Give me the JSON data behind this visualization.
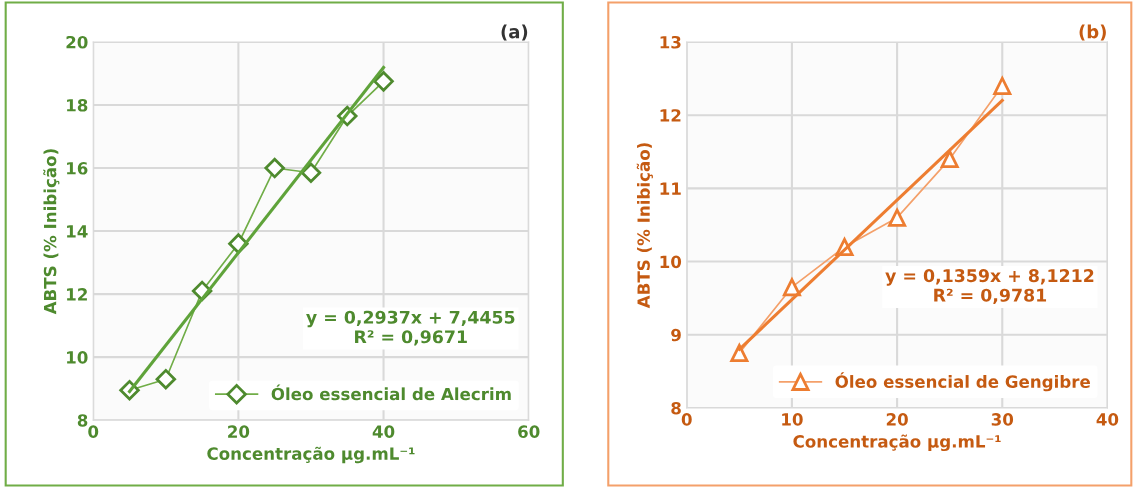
{
  "chart_data": [
    {
      "type": "line",
      "xlabel": "Concentração μg.mL⁻¹",
      "ylabel": "ABTS (% Inibição)",
      "xlim": [
        0,
        60
      ],
      "xticks": [
        0,
        20,
        40,
        60
      ],
      "ylim": [
        8,
        20
      ],
      "yticks": [
        8,
        10,
        12,
        14,
        16,
        18,
        20
      ],
      "grid": true,
      "legend": "bottom right",
      "annotations": [
        "(a)",
        "y = 0,2937x + 7,4455\nR² = 0,9671"
      ],
      "series": [
        {
          "name": "Óleo essencial de Alecrim",
          "color": "#70ad47",
          "marker": "diamond",
          "x": [
            5,
            10,
            15,
            20,
            25,
            30,
            35,
            40
          ],
          "values": [
            8.95,
            9.3,
            12.1,
            13.6,
            16.0,
            15.85,
            17.65,
            18.75
          ]
        },
        {
          "type": "line",
          "color": "#5fa33a",
          "marker": "none",
          "x": [
            5,
            40
          ],
          "values": [
            8.91,
            19.19
          ]
        }
      ]
    },
    {
      "type": "line",
      "xlabel": "Concentração μg.mL⁻¹",
      "ylabel": "ABTS (% Inibição)",
      "xlim": [
        0,
        40
      ],
      "xticks": [
        0,
        10,
        20,
        30,
        40
      ],
      "ylim": [
        8,
        13
      ],
      "yticks": [
        8,
        9,
        10,
        11,
        12,
        13
      ],
      "grid": true,
      "legend": "bottom right",
      "annotations": [
        "(b)",
        "y = 0,1359x + 8,1212\nR² = 0,9781"
      ],
      "series": [
        {
          "name": "Óleo essencial de Gengibre",
          "color": "#f4a06a",
          "marker": "triangle",
          "x": [
            5,
            10,
            15,
            20,
            25,
            30
          ],
          "values": [
            8.75,
            9.65,
            10.2,
            10.6,
            11.4,
            12.4
          ]
        },
        {
          "type": "line",
          "color": "#ed7d31",
          "marker": "none",
          "x": [
            5,
            30
          ],
          "values": [
            8.8,
            12.2
          ]
        }
      ]
    }
  ]
}
